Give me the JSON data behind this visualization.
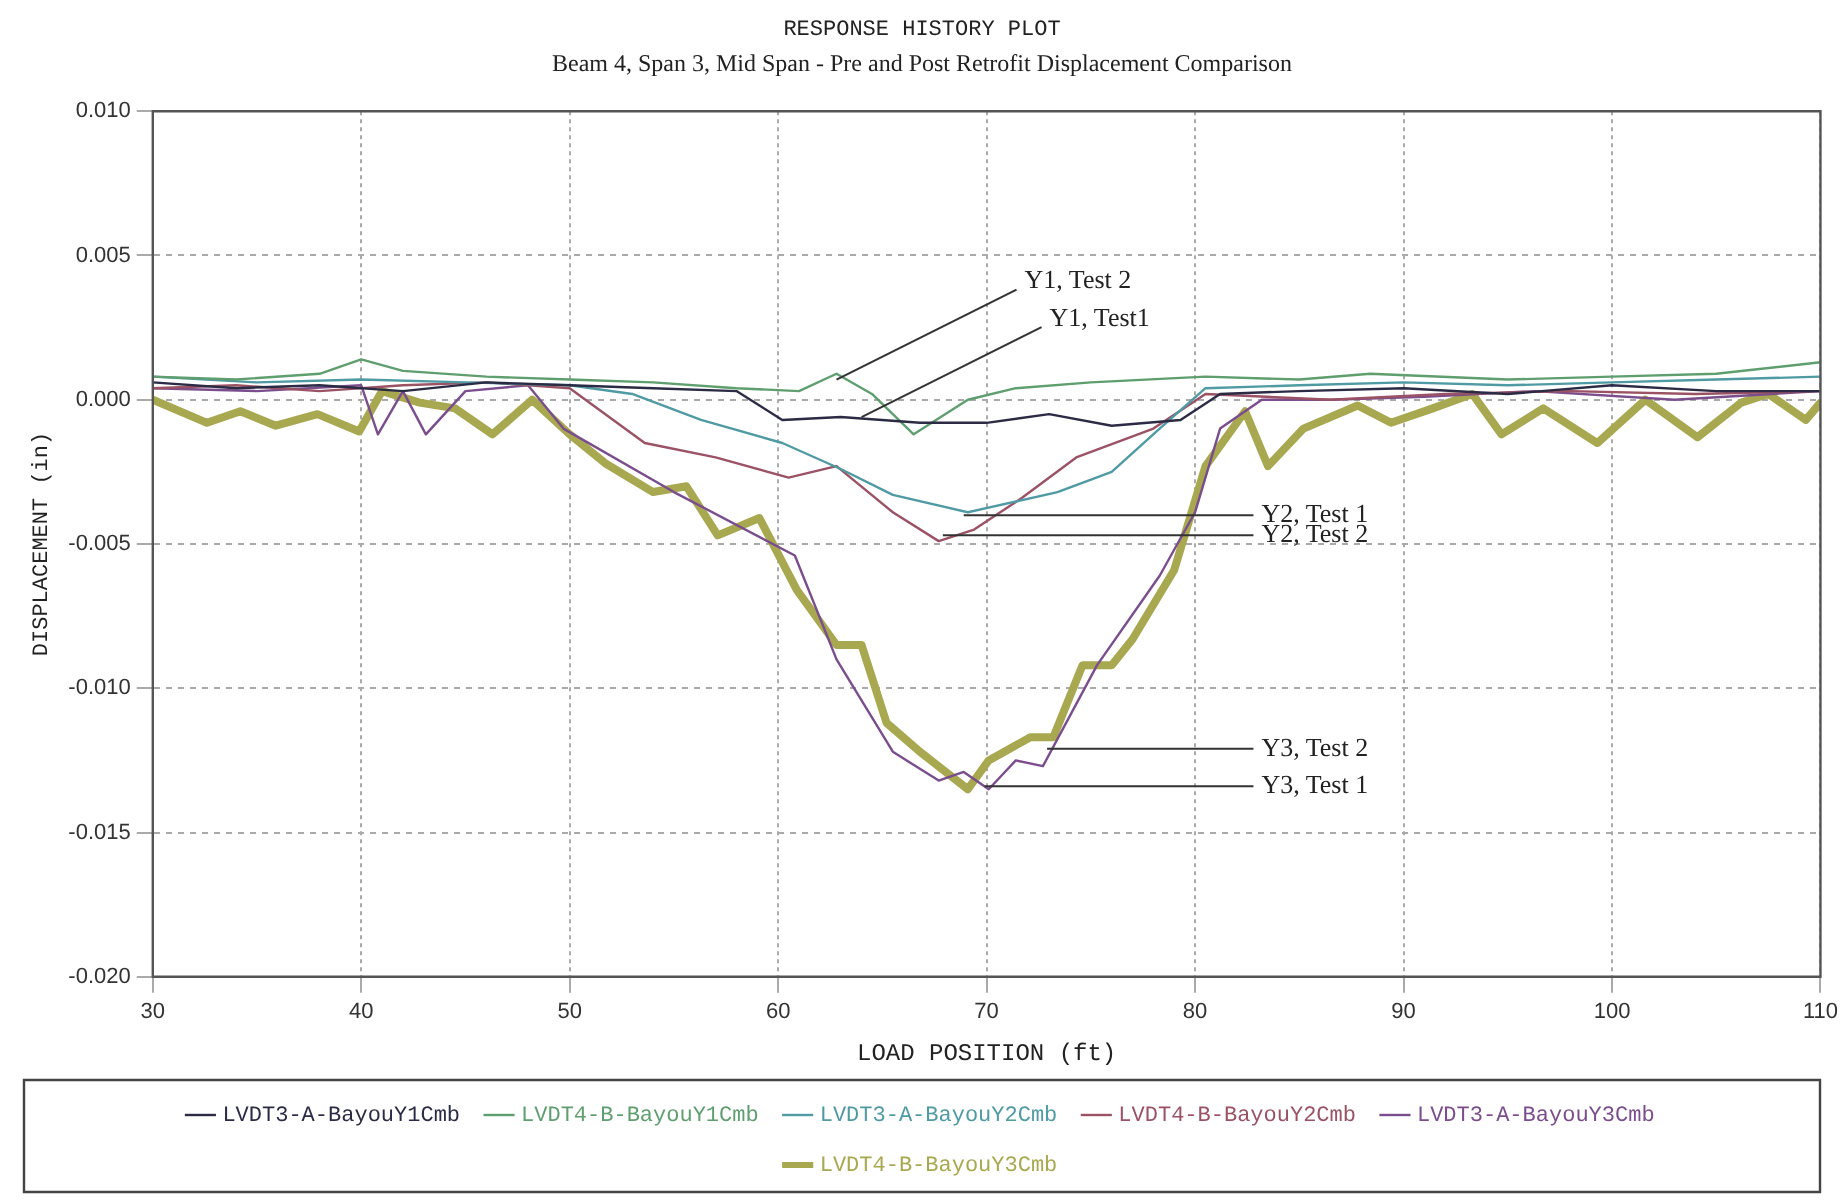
{
  "chart_data": {
    "type": "line",
    "title": "RESPONSE HISTORY PLOT",
    "subtitle": "Beam 4, Span 3, Mid Span - Pre and Post Retrofit Displacement Comparison",
    "xlabel": "LOAD POSITION (ft)",
    "ylabel": "DISPLACEMENT (in)",
    "xlim": [
      30,
      110
    ],
    "xticks": [
      30,
      40,
      50,
      60,
      70,
      80,
      90,
      100,
      110
    ],
    "ylim": [
      -0.02,
      0.01
    ],
    "yticks": [
      {
        "value": -0.02,
        "label": "-0.020"
      },
      {
        "value": -0.015,
        "label": "-0.015"
      },
      {
        "value": -0.01,
        "label": "-0.010"
      },
      {
        "value": -0.005,
        "label": "-0.005"
      },
      {
        "value": 0,
        "label": "0.000"
      },
      {
        "value": 0.005,
        "label": "0.005"
      },
      {
        "value": 0.01,
        "label": "0.010"
      }
    ],
    "grid": true,
    "legend": "bottom",
    "marker": "none",
    "series": [
      {
        "name": "LVDT3-A-BayouY1Cmb",
        "color": "#2b2b45",
        "x": [
          30,
          34,
          38,
          42,
          46,
          50,
          54,
          58,
          60.2,
          63,
          66.8,
          70,
          73,
          76,
          79.3,
          81.2,
          85,
          90,
          95,
          100,
          105,
          110
        ],
        "values": [
          0.0006,
          0.0004,
          0.0005,
          0.0003,
          0.0006,
          0.0005,
          0.0004,
          0.0003,
          -0.0007,
          -0.0006,
          -0.0008,
          -0.0008,
          -0.0005,
          -0.0009,
          -0.0007,
          0.0002,
          0.0003,
          0.0004,
          0.0002,
          0.0005,
          0.0003,
          0.0003
        ]
      },
      {
        "name": "LVDT4-B-BayouY1Cmb",
        "color": "#5f9e6e",
        "x": [
          30,
          34,
          38,
          40,
          42,
          46,
          50,
          54,
          58,
          61,
          62.8,
          64.5,
          66.5,
          69.1,
          71.4,
          75,
          80.5,
          85,
          88.4,
          95,
          100,
          105,
          110
        ],
        "values": [
          0.0008,
          0.0007,
          0.0009,
          0.0014,
          0.001,
          0.0008,
          0.0007,
          0.0006,
          0.0004,
          0.0003,
          0.0009,
          0.0002,
          -0.0012,
          0,
          0.0004,
          0.0006,
          0.0008,
          0.0007,
          0.0009,
          0.0007,
          0.0008,
          0.0009,
          0.0013
        ]
      },
      {
        "name": "LVDT3-A-BayouY2Cmb",
        "color": "#4f9aa3",
        "x": [
          30,
          35,
          40,
          45,
          50,
          53,
          56.3,
          60.2,
          63,
          65.5,
          69.1,
          73.4,
          76,
          78.3,
          80.5,
          85,
          90,
          95,
          100,
          105,
          110
        ],
        "values": [
          0.0008,
          0.0006,
          0.0007,
          0.0006,
          0.0005,
          0.0002,
          -0.0007,
          -0.0015,
          -0.0024,
          -0.0033,
          -0.0039,
          -0.0032,
          -0.0025,
          -0.001,
          0.0004,
          0.0005,
          0.0006,
          0.0005,
          0.0006,
          0.0007,
          0.0008
        ]
      },
      {
        "name": "LVDT4-B-BayouY2Cmb",
        "color": "#9a5264",
        "x": [
          30,
          34,
          38,
          42,
          46,
          50,
          53.6,
          57,
          60.5,
          62.8,
          65.5,
          67.7,
          69.4,
          71.7,
          74.3,
          78,
          80.5,
          86.5,
          92,
          98,
          104,
          110
        ],
        "values": [
          0.0004,
          0.0005,
          0.0003,
          0.0005,
          0.0006,
          0.0004,
          -0.0015,
          -0.002,
          -0.0027,
          -0.0023,
          -0.0039,
          -0.0049,
          -0.0045,
          -0.0034,
          -0.002,
          -0.001,
          0.0002,
          0,
          0.0002,
          0.0003,
          0.0002,
          0.0003
        ]
      },
      {
        "name": "LVDT3-A-BayouY3Cmb",
        "color": "#7b4d8d",
        "x": [
          30,
          35,
          40,
          40.8,
          42,
          43.1,
          45,
          48,
          49.7,
          55,
          60.8,
          62.8,
          65.5,
          67.7,
          68.9,
          70.1,
          71.4,
          72.7,
          75.3,
          78.3,
          80,
          81.2,
          83.2,
          86.5,
          91,
          96.3,
          103,
          110
        ],
        "values": [
          0.0004,
          0.0003,
          0.0005,
          -0.0012,
          0.0003,
          -0.0012,
          0.0003,
          0.0005,
          -0.001,
          -0.0032,
          -0.0054,
          -0.009,
          -0.0122,
          -0.0132,
          -0.0129,
          -0.0135,
          -0.0125,
          -0.0127,
          -0.0092,
          -0.0061,
          -0.0039,
          -0.001,
          0,
          0,
          0.0001,
          0.0003,
          0,
          0.0003
        ]
      },
      {
        "name": "LVDT4-B-BayouY3Cmb",
        "color": "#a8a850",
        "x": [
          30,
          32.6,
          34.2,
          35.9,
          37.9,
          39.9,
          41,
          42.8,
          44.5,
          46.3,
          48.2,
          50,
          51.7,
          54,
          55.6,
          57.1,
          59.1,
          60.9,
          62.8,
          64,
          65.2,
          66.8,
          69.1,
          70.1,
          72.1,
          73.2,
          74.6,
          76,
          77,
          79,
          80.5,
          82.4,
          83.5,
          85.2,
          87.8,
          89.4,
          91.4,
          93.3,
          94.7,
          96.7,
          99.3,
          101.6,
          104.1,
          106.2,
          107.5,
          109.3,
          110
        ],
        "values": [
          0,
          -0.0008,
          -0.0004,
          -0.0009,
          -0.0005,
          -0.0011,
          0.0003,
          -0.0001,
          -0.0003,
          -0.0012,
          0,
          -0.0012,
          -0.0022,
          -0.0032,
          -0.003,
          -0.0047,
          -0.0041,
          -0.0066,
          -0.0085,
          -0.0085,
          -0.0112,
          -0.0122,
          -0.0135,
          -0.0125,
          -0.0117,
          -0.0117,
          -0.0092,
          -0.0092,
          -0.0083,
          -0.0059,
          -0.0023,
          -0.0004,
          -0.0023,
          -0.001,
          -0.0002,
          -0.0008,
          -0.0003,
          0.0002,
          -0.0012,
          -0.0003,
          -0.0015,
          0,
          -0.0013,
          -0.0001,
          0.0002,
          -0.0007,
          -0.0001
        ]
      }
    ],
    "annotations": [
      {
        "text": "Y1, Test 2",
        "x": 62.8,
        "y": 0.0007
      },
      {
        "text": "Y1, Test1",
        "x": 64,
        "y": -0.0006
      },
      {
        "text": "Y2, Test 1",
        "x": 68.9,
        "y": -0.004
      },
      {
        "text": "Y2, Test 2",
        "x": 67.9,
        "y": -0.0047
      },
      {
        "text": "Y3, Test 2",
        "x": 72.9,
        "y": -0.0121
      },
      {
        "text": "Y3, Test 1",
        "x": 69.9,
        "y": -0.0134
      }
    ]
  }
}
